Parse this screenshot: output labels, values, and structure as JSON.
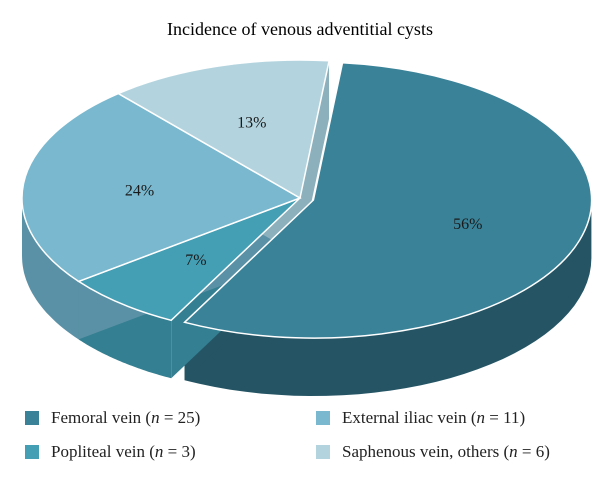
{
  "chart_data": {
    "type": "pie",
    "title": "Incidence of venous adventitial cysts",
    "slices": [
      {
        "label": "Femoral vein",
        "n": 25,
        "value": 56,
        "value_label": "56%",
        "color": "#3a8298",
        "side_color": "#255565"
      },
      {
        "label": "Popliteal vein",
        "n": 3,
        "value": 7,
        "value_label": "7%",
        "color": "#449fb5",
        "side_color": "#347f91"
      },
      {
        "label": "External iliac vein",
        "n": 11,
        "value": 24,
        "value_label": "24%",
        "color": "#79b8ce",
        "side_color": "#5b91a6"
      },
      {
        "label": "Saphenous vein, others",
        "n": 6,
        "value": 13,
        "value_label": "13%",
        "color": "#b3d4df",
        "side_color": "#8db0bd"
      }
    ],
    "legend_position": "bottom",
    "exploded_slice": "Femoral vein",
    "style": "3d"
  },
  "legend": {
    "items": [
      {
        "name": "Femoral vein",
        "n_text": "n",
        "eq_text": " = 25)",
        "color": "#3a8298"
      },
      {
        "name": "Popliteal vein",
        "n_text": "n",
        "eq_text": " = 3)",
        "color": "#449fb5"
      },
      {
        "name": "External iliac vein",
        "n_text": "n",
        "eq_text": " = 11)",
        "color": "#79b8ce"
      },
      {
        "name": "Saphenous vein, others",
        "n_text": "n",
        "eq_text": " = 6)",
        "color": "#b3d4df"
      }
    ]
  }
}
